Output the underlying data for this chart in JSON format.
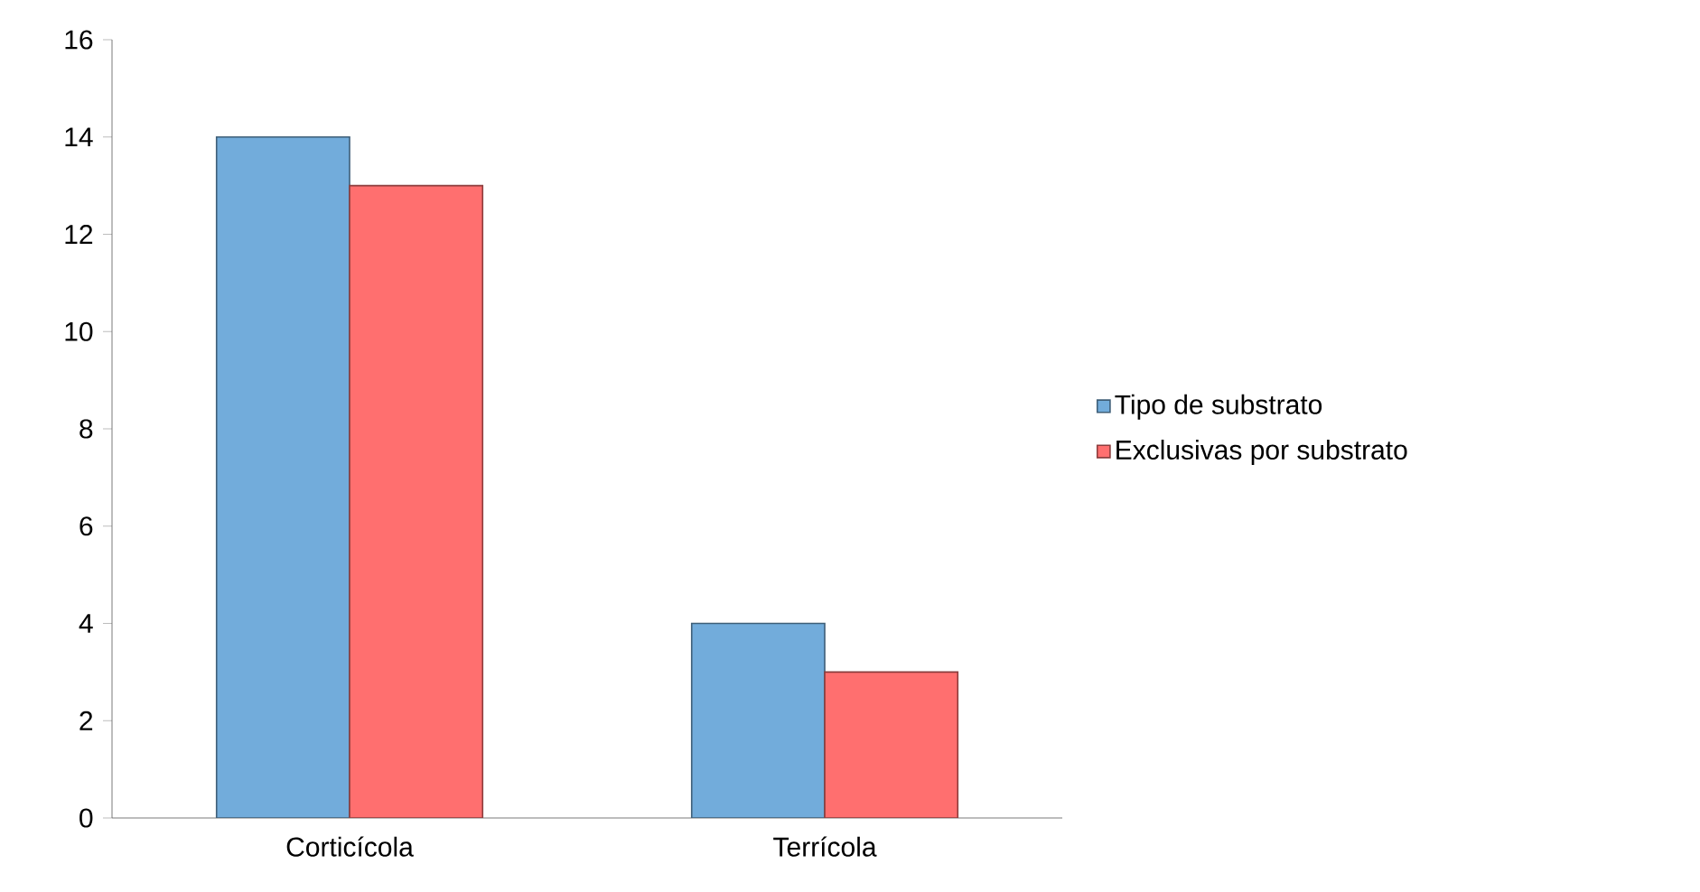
{
  "chart_data": {
    "type": "bar",
    "categories": [
      "Corticícola",
      "Terrícola"
    ],
    "series": [
      {
        "name": "Tipo de substrato",
        "color": "#72acdb",
        "values": [
          14,
          4
        ]
      },
      {
        "name": "Exclusivas por substrato",
        "color": "#ff6f6f",
        "values": [
          13,
          3
        ]
      }
    ],
    "ylim": [
      0,
      16
    ],
    "yticks": [
      0,
      2,
      4,
      6,
      8,
      10,
      12,
      14,
      16
    ],
    "legend": "right"
  }
}
